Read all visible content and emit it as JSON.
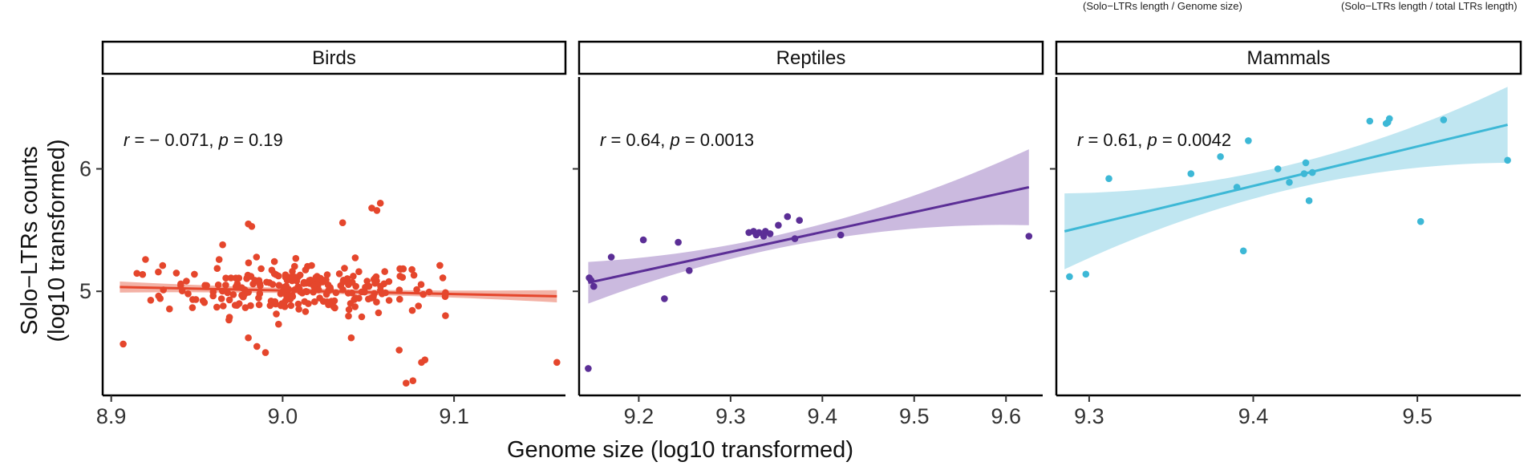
{
  "top_notes": [
    "(Solo−LTRs length / Genome size)",
    "(Solo−LTRs length / total LTRs length)"
  ],
  "axes": {
    "ylabel_line1": "Solo−LTRs counts",
    "ylabel_line2": "(log10 transformed)",
    "xlabel": "Genome size (log10 transformed)"
  },
  "colors": {
    "birds": "#e5462c",
    "birds_band": "#f1a596",
    "reptiles": "#5b2e96",
    "reptiles_band": "#c2aed9",
    "mammals": "#3db8d6",
    "mammals_band": "#b5e2ee"
  },
  "chart_data": [
    {
      "type": "scatter",
      "panel": "Birds",
      "title": "Birds",
      "xlim": [
        8.895,
        9.165
      ],
      "ylim": [
        4.15,
        6.75
      ],
      "xticks": [
        8.9,
        9.0,
        9.1
      ],
      "xtick_labels": [
        "8.9",
        "9.0",
        "9.1"
      ],
      "yticks": [
        5,
        6
      ],
      "ytick_labels": [
        "5",
        "6"
      ],
      "annotation": {
        "r_symbol": "r",
        "r_text": " = − 0.071, ",
        "p_symbol": "p",
        "p_text": " = 0.19"
      },
      "fit": {
        "x0": 8.905,
        "y0": 5.035,
        "x1": 9.16,
        "y1": 4.96,
        "band0": 0.045,
        "band_mid": 0.02,
        "band1": 0.05
      },
      "outliers": [
        [
          8.907,
          4.57
        ],
        [
          9.072,
          4.25
        ],
        [
          9.076,
          4.27
        ],
        [
          9.081,
          4.42
        ],
        [
          9.083,
          4.44
        ],
        [
          9.16,
          4.42
        ],
        [
          8.98,
          4.62
        ],
        [
          8.985,
          4.55
        ],
        [
          8.99,
          4.5
        ],
        [
          9.04,
          4.62
        ],
        [
          9.068,
          4.52
        ],
        [
          9.055,
          5.66
        ],
        [
          9.057,
          5.72
        ],
        [
          9.052,
          5.68
        ],
        [
          9.035,
          5.56
        ],
        [
          8.98,
          5.55
        ],
        [
          8.982,
          5.53
        ],
        [
          8.965,
          5.38
        ],
        [
          8.92,
          5.26
        ],
        [
          8.93,
          5.21
        ]
      ],
      "cluster": {
        "n": 240,
        "x_mean": 9.01,
        "x_sd": 0.04,
        "y_mean": 5.02,
        "y_sd": 0.11
      }
    },
    {
      "type": "scatter",
      "panel": "Reptiles",
      "title": "Reptiles",
      "xlim": [
        9.135,
        9.64
      ],
      "ylim": [
        4.15,
        6.75
      ],
      "xticks": [
        9.2,
        9.3,
        9.4,
        9.5,
        9.6
      ],
      "xtick_labels": [
        "9.2",
        "9.3",
        "9.4",
        "9.5",
        "9.6"
      ],
      "yticks": [
        5,
        6
      ],
      "ytick_labels": [
        "5",
        "6"
      ],
      "annotation": {
        "r_symbol": "r",
        "r_text": " = 0.64, ",
        "p_symbol": "p",
        "p_text": " = 0.0013"
      },
      "fit": {
        "x0": 9.145,
        "y0": 5.07,
        "x1": 9.625,
        "y1": 5.85,
        "band0": 0.17,
        "band_mid": 0.06,
        "band1": 0.31
      },
      "points": [
        [
          9.145,
          4.37
        ],
        [
          9.146,
          5.11
        ],
        [
          9.148,
          5.09
        ],
        [
          9.151,
          5.04
        ],
        [
          9.17,
          5.28
        ],
        [
          9.205,
          5.42
        ],
        [
          9.228,
          4.94
        ],
        [
          9.243,
          5.4
        ],
        [
          9.255,
          5.17
        ],
        [
          9.32,
          5.48
        ],
        [
          9.325,
          5.49
        ],
        [
          9.328,
          5.46
        ],
        [
          9.331,
          5.48
        ],
        [
          9.336,
          5.45
        ],
        [
          9.338,
          5.49
        ],
        [
          9.343,
          5.47
        ],
        [
          9.352,
          5.54
        ],
        [
          9.362,
          5.61
        ],
        [
          9.37,
          5.43
        ],
        [
          9.375,
          5.58
        ],
        [
          9.42,
          5.46
        ],
        [
          9.625,
          5.45
        ]
      ]
    },
    {
      "type": "scatter",
      "panel": "Mammals",
      "title": "Mammals",
      "xlim": [
        9.28,
        9.563
      ],
      "ylim": [
        4.15,
        6.75
      ],
      "xticks": [
        9.3,
        9.4,
        9.5
      ],
      "xtick_labels": [
        "9.3",
        "9.4",
        "9.5"
      ],
      "yticks": [
        5,
        6
      ],
      "ytick_labels": [
        "5",
        "6"
      ],
      "annotation": {
        "r_symbol": "r",
        "r_text": " = 0.61, ",
        "p_symbol": "p",
        "p_text": " = 0.0042"
      },
      "fit": {
        "x0": 9.285,
        "y0": 5.49,
        "x1": 9.555,
        "y1": 6.36,
        "band0": 0.31,
        "band_mid": 0.1,
        "band1": 0.31
      },
      "points": [
        [
          9.288,
          5.12
        ],
        [
          9.298,
          5.14
        ],
        [
          9.312,
          5.92
        ],
        [
          9.362,
          5.96
        ],
        [
          9.38,
          6.1
        ],
        [
          9.39,
          5.85
        ],
        [
          9.394,
          5.33
        ],
        [
          9.397,
          6.23
        ],
        [
          9.415,
          6.0
        ],
        [
          9.422,
          5.89
        ],
        [
          9.431,
          5.96
        ],
        [
          9.432,
          6.05
        ],
        [
          9.434,
          5.74
        ],
        [
          9.436,
          5.97
        ],
        [
          9.471,
          6.39
        ],
        [
          9.481,
          6.37
        ],
        [
          9.482,
          6.38
        ],
        [
          9.483,
          6.41
        ],
        [
          9.502,
          5.57
        ],
        [
          9.516,
          6.4
        ],
        [
          9.555,
          6.07
        ]
      ]
    }
  ]
}
